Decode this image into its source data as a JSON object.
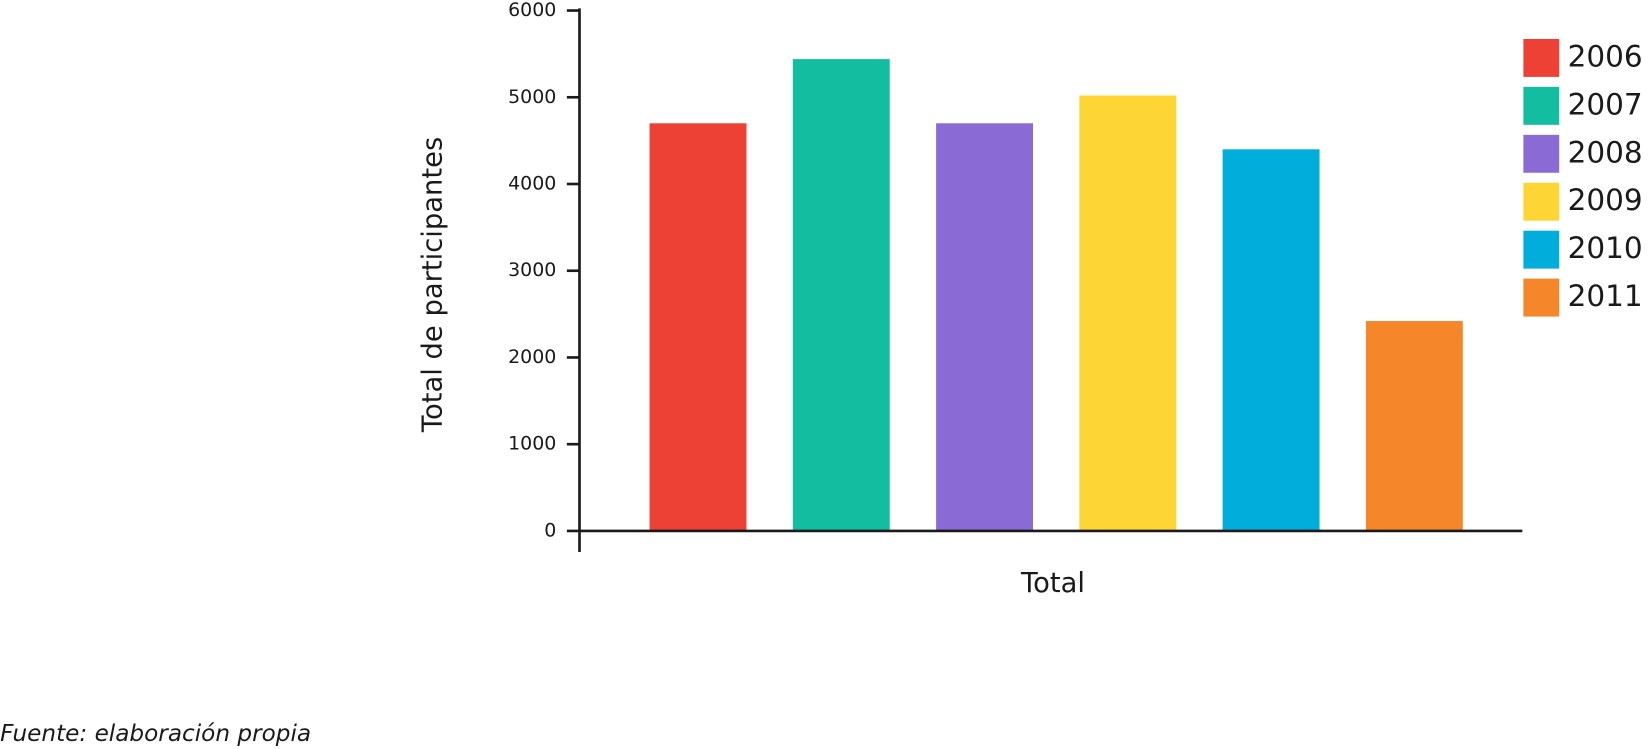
{
  "chart_data": {
    "type": "bar",
    "ylabel": "Total de participantes",
    "categories": [
      "Total"
    ],
    "series": [
      {
        "name": "2006",
        "color": "#ee4136",
        "values": [
          4700
        ]
      },
      {
        "name": "2007",
        "color": "#13bea0",
        "values": [
          5440
        ]
      },
      {
        "name": "2008",
        "color": "#8a6bd6",
        "values": [
          4700
        ]
      },
      {
        "name": "2009",
        "color": "#fdd535",
        "values": [
          5020
        ]
      },
      {
        "name": "2010",
        "color": "#01aedb",
        "values": [
          4400
        ]
      },
      {
        "name": "2011",
        "color": "#f6862a",
        "values": [
          2420
        ]
      }
    ],
    "ylim": [
      0,
      6000
    ],
    "yticks": [
      0,
      1000,
      2000,
      3000,
      4000,
      5000,
      6000
    ],
    "legend": "right",
    "source": "Fuente: elaboración propia"
  }
}
